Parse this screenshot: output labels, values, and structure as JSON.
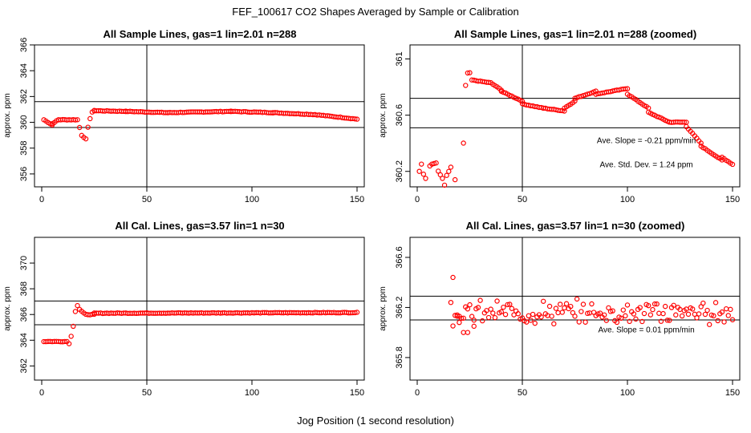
{
  "figure": {
    "title": "FEF_100617  CO2 Shapes Averaged by Sample or Calibration",
    "xlabel": "Jog Position (1 second resolution)"
  },
  "chart_data": [
    {
      "type": "scatter",
      "title": "All Sample Lines, gas=1 lin=2.01 n=288",
      "xlabel": "",
      "ylabel": "approx. ppm",
      "xlim": [
        0,
        150
      ],
      "ylim": [
        355,
        366
      ],
      "xticks": [
        0,
        50,
        100,
        150
      ],
      "yticks": [
        356,
        358,
        360,
        362,
        364,
        366
      ],
      "hlines": [
        361.6,
        359.6
      ],
      "vline": 50,
      "color": "#ff0000",
      "segments": [
        [
          1,
          5,
          360.2,
          359.8
        ],
        [
          5,
          8,
          359.9,
          360.2
        ],
        [
          8,
          17,
          360.2,
          360.2
        ],
        [
          18,
          18,
          359.6,
          359.6
        ],
        [
          19,
          21,
          359.0,
          358.7
        ],
        [
          22,
          23,
          359.6,
          360.3
        ],
        [
          24,
          25,
          360.8,
          360.9
        ],
        [
          25,
          40,
          360.9,
          360.85
        ],
        [
          40,
          60,
          360.85,
          360.75
        ],
        [
          60,
          90,
          360.75,
          360.85
        ],
        [
          90,
          110,
          360.85,
          360.75
        ],
        [
          110,
          130,
          360.75,
          360.6
        ],
        [
          130,
          150,
          360.6,
          360.25
        ]
      ],
      "annotations": []
    },
    {
      "type": "scatter",
      "title": "All Sample Lines, gas=1 lin=2.01 n=288 (zoomed)",
      "xlabel": "",
      "ylabel": "approx. ppm",
      "xlim": [
        0,
        150
      ],
      "ylim": [
        360.09,
        361.1
      ],
      "xticks": [
        0,
        50,
        100,
        150
      ],
      "yticks": [
        360.2,
        360.6,
        361.0
      ],
      "hlines": [
        360.72,
        360.51
      ],
      "vline": 50,
      "color": "#ff0000",
      "segments": [
        [
          1,
          1,
          360.2,
          360.2
        ],
        [
          2,
          2,
          360.25,
          360.25
        ],
        [
          3,
          4,
          360.18,
          360.15
        ],
        [
          6,
          6,
          360.24,
          360.24
        ],
        [
          7,
          9,
          360.25,
          360.26
        ],
        [
          10,
          12,
          360.2,
          360.15
        ],
        [
          13,
          13,
          360.1,
          360.1
        ],
        [
          14,
          16,
          360.17,
          360.23
        ],
        [
          18,
          18,
          360.14,
          360.14
        ],
        [
          22,
          22,
          360.4,
          360.4
        ],
        [
          23,
          23,
          360.81,
          360.81
        ],
        [
          24,
          25,
          360.9,
          360.9
        ],
        [
          26,
          35,
          360.85,
          360.83
        ],
        [
          36,
          40,
          360.82,
          360.78
        ],
        [
          40,
          50,
          360.77,
          360.7
        ],
        [
          50,
          60,
          360.68,
          360.65
        ],
        [
          60,
          70,
          360.65,
          360.63
        ],
        [
          70,
          75,
          360.65,
          360.7
        ],
        [
          75,
          85,
          360.72,
          360.77
        ],
        [
          85,
          100,
          360.75,
          360.79
        ],
        [
          100,
          110,
          360.75,
          360.65
        ],
        [
          110,
          120,
          360.62,
          360.55
        ],
        [
          120,
          128,
          360.55,
          360.55
        ],
        [
          128,
          135,
          360.52,
          360.4
        ],
        [
          135,
          145,
          360.38,
          360.28
        ],
        [
          145,
          150,
          360.3,
          360.25
        ]
      ],
      "annotations": [
        {
          "text": "Ave. Slope =  -0.21  ppm/min",
          "x": 109,
          "y": 360.4
        },
        {
          "text": "Ave. Std. Dev. =  1.24  ppm",
          "x": 109,
          "y": 360.23
        }
      ]
    },
    {
      "type": "scatter",
      "title": "All Cal. Lines, gas=3.57 lin=1 n=30",
      "xlabel": "",
      "ylabel": "approx. ppm",
      "xlim": [
        0,
        150
      ],
      "ylim": [
        360.9,
        372
      ],
      "xticks": [
        0,
        50,
        100,
        150
      ],
      "yticks": [
        362,
        364,
        366,
        368,
        370
      ],
      "hlines": [
        367.05,
        365.2
      ],
      "vline": 50,
      "color": "#ff0000",
      "segments": [
        [
          1,
          12,
          363.9,
          363.9
        ],
        [
          13,
          13,
          363.75,
          363.75
        ],
        [
          14,
          14,
          364.3,
          364.3
        ],
        [
          15,
          15,
          365.1,
          365.1
        ],
        [
          16,
          16,
          366.25,
          366.25
        ],
        [
          17,
          17,
          366.7,
          366.7
        ],
        [
          18,
          20,
          366.4,
          366.1
        ],
        [
          21,
          25,
          366.0,
          366.0
        ],
        [
          25,
          150,
          366.1,
          366.15
        ]
      ],
      "annotations": []
    },
    {
      "type": "scatter",
      "title": "All Cal. Lines, gas=3.57 lin=1 n=30 (zoomed)",
      "xlabel": "",
      "ylabel": "approx. ppm",
      "xlim": [
        0,
        150
      ],
      "ylim": [
        365.62,
        366.76
      ],
      "xticks": [
        0,
        50,
        100,
        150
      ],
      "yticks": [
        365.8,
        366.2,
        366.6
      ],
      "hlines": [
        366.29,
        366.1
      ],
      "vline": 50,
      "color": "#ff0000",
      "segments": [],
      "scatter": {
        "x_start": 17,
        "x_end": 150,
        "center": 366.16,
        "spread": 0.07,
        "extra": [
          [
            17,
            366.44
          ],
          [
            16,
            366.24
          ],
          [
            19,
            366.14
          ],
          [
            20,
            366.08
          ],
          [
            22,
            366.0
          ],
          [
            24,
            366.0
          ],
          [
            27,
            366.05
          ]
        ]
      },
      "annotations": [
        {
          "text": "Ave. Slope =  0.01  ppm/min",
          "x": 109,
          "y": 366.0
        }
      ]
    }
  ]
}
